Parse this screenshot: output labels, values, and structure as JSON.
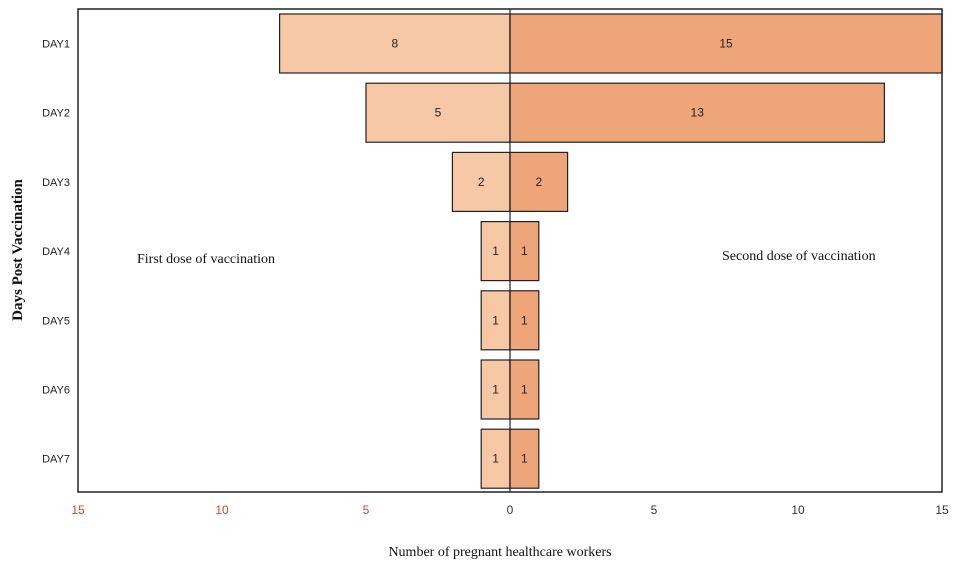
{
  "chart_data": {
    "type": "bar",
    "orientation": "horizontal",
    "layout": "diverging",
    "categories": [
      "DAY1",
      "DAY2",
      "DAY3",
      "DAY4",
      "DAY5",
      "DAY6",
      "DAY7"
    ],
    "series": [
      {
        "values": [
          8,
          5,
          2,
          1,
          1,
          1,
          1
        ],
        "color": "#f6c8a6",
        "side": "left"
      },
      {
        "values": [
          15,
          13,
          2,
          1,
          1,
          1,
          1
        ],
        "color": "#eea57a",
        "side": "right"
      }
    ],
    "annotations": {
      "left": "First dose of vaccination",
      "right": "Second dose of vaccination"
    },
    "xlabel": "Number of pregnant healthcare workers",
    "ylabel": "Days Post Vaccination",
    "xlim": [
      -15,
      15
    ],
    "xticks": [
      {
        "value": -15,
        "label": "15"
      },
      {
        "value": -10,
        "label": "10"
      },
      {
        "value": -5,
        "label": "5"
      },
      {
        "value": 0,
        "label": "0"
      },
      {
        "value": 5,
        "label": "5"
      },
      {
        "value": 10,
        "label": "10"
      },
      {
        "value": 15,
        "label": "15"
      }
    ],
    "xtick_colors": {
      "negative": "#d9442b",
      "nonnegative": "#333333"
    },
    "grid": false,
    "legend": "none"
  }
}
